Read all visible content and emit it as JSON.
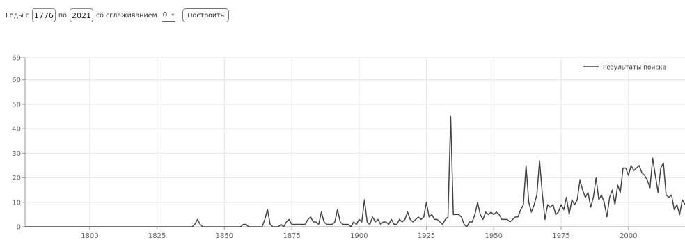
{
  "controls": {
    "years_from_label": "Годы с",
    "year_from": "1776",
    "to_label": "по",
    "year_to": "2021",
    "smoothing_label": "со сглаживанием",
    "smoothing_value": "0",
    "build_button": "Построить"
  },
  "chart_data": {
    "type": "line",
    "xlim": [
      1776,
      2021
    ],
    "ylim": [
      0,
      69
    ],
    "x_ticks": [
      1800,
      1825,
      1850,
      1875,
      1900,
      1925,
      1950,
      1975,
      2000
    ],
    "y_ticks": [
      0,
      10,
      20,
      30,
      40,
      50,
      60,
      69
    ],
    "grid": true,
    "legend_position": "top-right",
    "line_color": "#444444",
    "series": [
      {
        "name": "Результаты поиска",
        "points": [
          [
            1776,
            0
          ],
          [
            1838,
            0
          ],
          [
            1839,
            1
          ],
          [
            1840,
            3
          ],
          [
            1841,
            1
          ],
          [
            1842,
            0
          ],
          [
            1856,
            0
          ],
          [
            1857,
            1
          ],
          [
            1858,
            1
          ],
          [
            1859,
            0
          ],
          [
            1864,
            0
          ],
          [
            1865,
            3
          ],
          [
            1866,
            7
          ],
          [
            1867,
            1
          ],
          [
            1868,
            0
          ],
          [
            1870,
            0
          ],
          [
            1871,
            1
          ],
          [
            1872,
            0
          ],
          [
            1873,
            2
          ],
          [
            1874,
            3
          ],
          [
            1875,
            1
          ],
          [
            1876,
            1
          ],
          [
            1878,
            1
          ],
          [
            1879,
            1
          ],
          [
            1880,
            1
          ],
          [
            1881,
            3
          ],
          [
            1882,
            4
          ],
          [
            1883,
            2
          ],
          [
            1884,
            2
          ],
          [
            1885,
            1
          ],
          [
            1886,
            6
          ],
          [
            1887,
            2
          ],
          [
            1888,
            1
          ],
          [
            1889,
            1
          ],
          [
            1890,
            1
          ],
          [
            1891,
            2
          ],
          [
            1892,
            7
          ],
          [
            1893,
            2
          ],
          [
            1894,
            1
          ],
          [
            1895,
            1
          ],
          [
            1896,
            1
          ],
          [
            1897,
            0
          ],
          [
            1898,
            2
          ],
          [
            1899,
            1
          ],
          [
            1900,
            3
          ],
          [
            1901,
            2
          ],
          [
            1902,
            11
          ],
          [
            1903,
            2
          ],
          [
            1904,
            1
          ],
          [
            1905,
            4
          ],
          [
            1906,
            2
          ],
          [
            1907,
            3
          ],
          [
            1908,
            1
          ],
          [
            1909,
            2
          ],
          [
            1910,
            2
          ],
          [
            1911,
            1
          ],
          [
            1912,
            3
          ],
          [
            1913,
            1
          ],
          [
            1914,
            1
          ],
          [
            1915,
            3
          ],
          [
            1916,
            2
          ],
          [
            1917,
            3
          ],
          [
            1918,
            6
          ],
          [
            1919,
            3
          ],
          [
            1920,
            2
          ],
          [
            1921,
            3
          ],
          [
            1922,
            4
          ],
          [
            1923,
            3
          ],
          [
            1924,
            4
          ],
          [
            1925,
            10
          ],
          [
            1926,
            4
          ],
          [
            1927,
            5
          ],
          [
            1928,
            3
          ],
          [
            1929,
            3
          ],
          [
            1930,
            2
          ],
          [
            1931,
            1
          ],
          [
            1932,
            3
          ],
          [
            1933,
            4
          ],
          [
            1934,
            45
          ],
          [
            1935,
            5
          ],
          [
            1936,
            5
          ],
          [
            1937,
            5
          ],
          [
            1938,
            4
          ],
          [
            1939,
            1
          ],
          [
            1940,
            0
          ],
          [
            1941,
            2
          ],
          [
            1942,
            2
          ],
          [
            1943,
            5
          ],
          [
            1944,
            10
          ],
          [
            1945,
            5
          ],
          [
            1946,
            3
          ],
          [
            1947,
            6
          ],
          [
            1948,
            5
          ],
          [
            1949,
            6
          ],
          [
            1950,
            5
          ],
          [
            1951,
            6
          ],
          [
            1952,
            5
          ],
          [
            1953,
            3
          ],
          [
            1954,
            3
          ],
          [
            1955,
            3
          ],
          [
            1956,
            2
          ],
          [
            1957,
            3
          ],
          [
            1958,
            4
          ],
          [
            1959,
            4
          ],
          [
            1960,
            7
          ],
          [
            1961,
            9
          ],
          [
            1962,
            25
          ],
          [
            1963,
            10
          ],
          [
            1964,
            6
          ],
          [
            1965,
            9
          ],
          [
            1966,
            13
          ],
          [
            1967,
            27
          ],
          [
            1968,
            14
          ],
          [
            1969,
            3
          ],
          [
            1970,
            9
          ],
          [
            1971,
            8
          ],
          [
            1972,
            9
          ],
          [
            1973,
            5
          ],
          [
            1974,
            6
          ],
          [
            1975,
            9
          ],
          [
            1976,
            7
          ],
          [
            1977,
            12
          ],
          [
            1978,
            5
          ],
          [
            1979,
            11
          ],
          [
            1980,
            9
          ],
          [
            1981,
            11
          ],
          [
            1982,
            19
          ],
          [
            1983,
            15
          ],
          [
            1984,
            12
          ],
          [
            1985,
            14
          ],
          [
            1986,
            8
          ],
          [
            1987,
            12
          ],
          [
            1988,
            20
          ],
          [
            1989,
            11
          ],
          [
            1990,
            13
          ],
          [
            1991,
            10
          ],
          [
            1992,
            4
          ],
          [
            1993,
            12
          ],
          [
            1994,
            15
          ],
          [
            1995,
            9
          ],
          [
            1996,
            17
          ],
          [
            1997,
            14
          ],
          [
            1998,
            24
          ],
          [
            1999,
            24
          ],
          [
            2000,
            21
          ],
          [
            2001,
            25
          ],
          [
            2002,
            23
          ],
          [
            2003,
            24
          ],
          [
            2004,
            25
          ],
          [
            2005,
            22
          ],
          [
            2006,
            21
          ],
          [
            2007,
            19
          ],
          [
            2008,
            16
          ],
          [
            2009,
            28
          ],
          [
            2010,
            21
          ],
          [
            2011,
            14
          ],
          [
            2012,
            24
          ],
          [
            2013,
            26
          ],
          [
            2014,
            13
          ],
          [
            2015,
            12
          ],
          [
            2016,
            13
          ],
          [
            2017,
            7
          ],
          [
            2018,
            9
          ],
          [
            2019,
            5
          ],
          [
            2020,
            11
          ],
          [
            2021,
            9
          ]
        ]
      }
    ]
  }
}
